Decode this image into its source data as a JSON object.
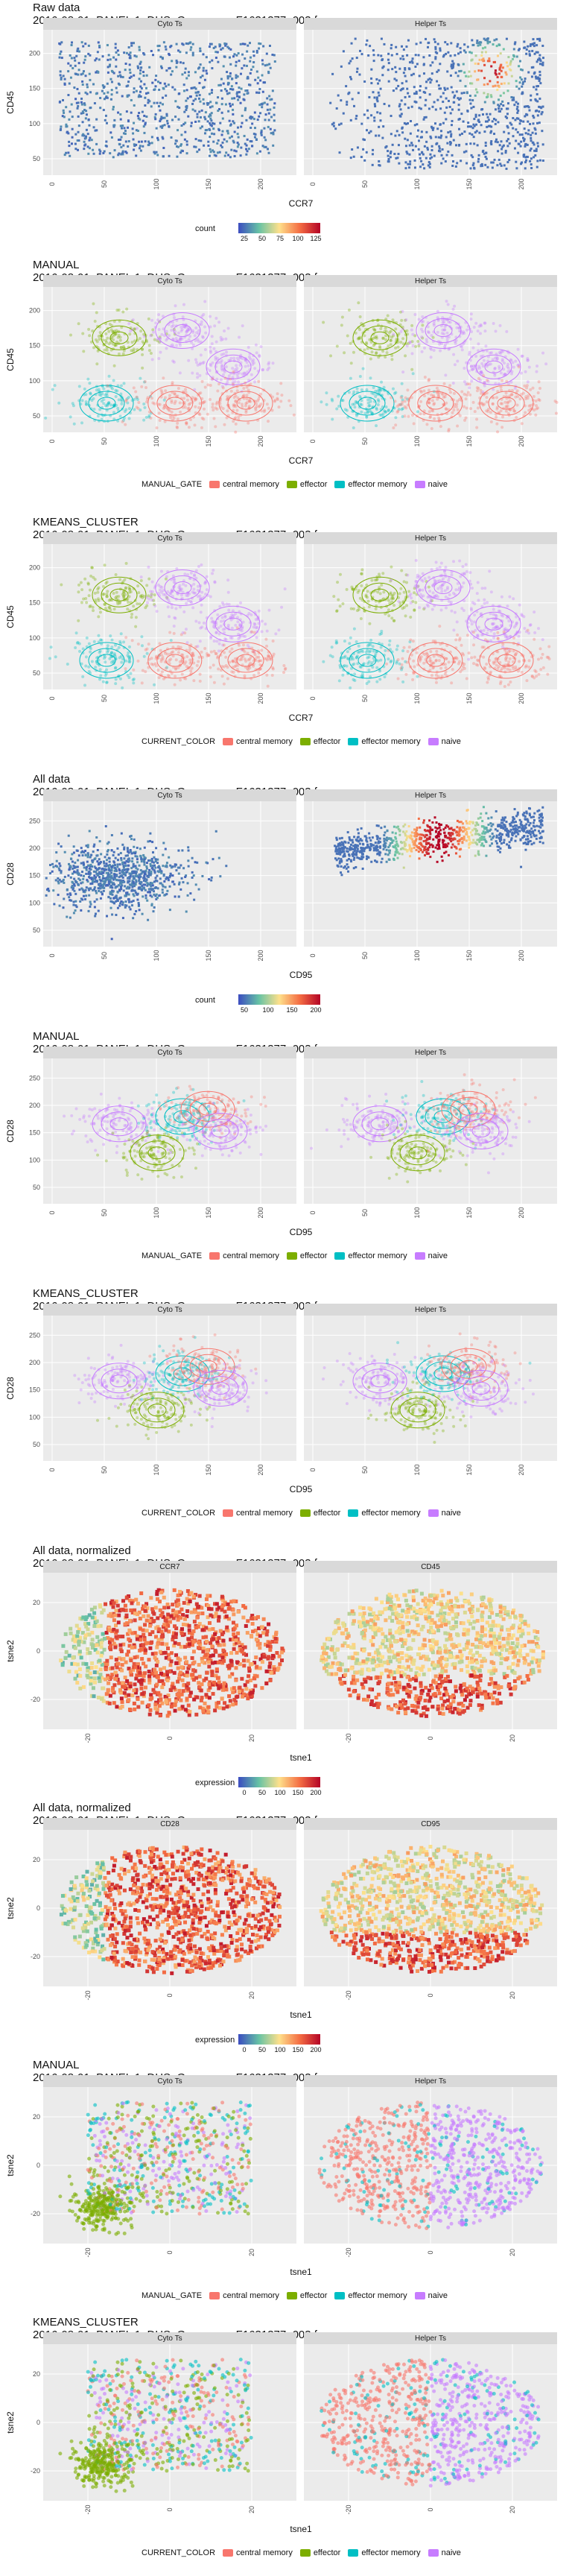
{
  "sections": [
    {
      "id": "raw",
      "title": "Raw data",
      "subtitle": "2016-08-01_PANEL 1_DHS_Group one_F1631377_003.fcs",
      "panels": [
        "Cyto Ts",
        "Helper Ts"
      ],
      "xlabel": "CCR7",
      "ylabel": "CD45",
      "legend_title": "count",
      "legend_ticks": [
        "25",
        "50",
        "75",
        "100",
        "125"
      ],
      "kind": "density"
    },
    {
      "id": "manual1",
      "title": "MANUAL",
      "subtitle": "2016-08-01_PANEL 1_DHS_Group one_F1631377_003.fcs",
      "panels": [
        "Cyto Ts",
        "Helper Ts"
      ],
      "xlabel": "CCR7",
      "ylabel": "CD45",
      "legend_title": "MANUAL_GATE",
      "kind": "cluster"
    },
    {
      "id": "kmeans1",
      "title": "KMEANS_CLUSTER",
      "subtitle": "2016-08-01_PANEL 1_DHS_Group one_F1631377_003.fcs",
      "panels": [
        "Cyto Ts",
        "Helper Ts"
      ],
      "xlabel": "CCR7",
      "ylabel": "CD45",
      "legend_title": "CURRENT_COLOR",
      "kind": "cluster"
    },
    {
      "id": "all",
      "title": "All data",
      "subtitle": "2016-08-01_PANEL 1_DHS_Group one_F1631377_003.fcs",
      "panels": [
        "Cyto Ts",
        "Helper Ts"
      ],
      "xlabel": "CD95",
      "ylabel": "CD28",
      "legend_title": "count",
      "legend_ticks": [
        "50",
        "100",
        "150",
        "200"
      ],
      "kind": "density"
    },
    {
      "id": "manual2",
      "title": "MANUAL",
      "subtitle": "2016-08-01_PANEL 1_DHS_Group one_F1631377_003.fcs",
      "panels": [
        "Cyto Ts",
        "Helper Ts"
      ],
      "xlabel": "CD95",
      "ylabel": "CD28",
      "legend_title": "MANUAL_GATE",
      "kind": "cluster"
    },
    {
      "id": "kmeans2",
      "title": "KMEANS_CLUSTER",
      "subtitle": "2016-08-01_PANEL 1_DHS_Group one_F1631377_003.fcs",
      "panels": [
        "Cyto Ts",
        "Helper Ts"
      ],
      "xlabel": "CD95",
      "ylabel": "CD28",
      "legend_title": "CURRENT_COLOR",
      "kind": "cluster"
    },
    {
      "id": "norm1",
      "title": "All data, normalized",
      "subtitle": "2016-08-01_PANEL 1_DHS_Group one_F1631377_003.fcs",
      "panels": [
        "CCR7",
        "CD45"
      ],
      "xlabel": "tsne1",
      "ylabel": "tsne2",
      "legend_title": "expression",
      "legend_ticks": [
        "0",
        "50",
        "100",
        "150",
        "200"
      ],
      "kind": "tsneheat"
    },
    {
      "id": "norm2",
      "title": "All data, normalized",
      "subtitle": "2016-08-01_PANEL 1_DHS_Group one_F1631377_003.fcs",
      "panels": [
        "CD28",
        "CD95"
      ],
      "xlabel": "tsne1",
      "ylabel": "tsne2",
      "legend_title": "expression",
      "legend_ticks": [
        "0",
        "50",
        "100",
        "150",
        "200"
      ],
      "kind": "tsneheat"
    },
    {
      "id": "manual3",
      "title": "MANUAL",
      "subtitle": "2016-08-01_PANEL 1_DHS_Group one_F1631377_003.fcs",
      "panels": [
        "Cyto Ts",
        "Helper Ts"
      ],
      "xlabel": "tsne1",
      "ylabel": "tsne2",
      "legend_title": "MANUAL_GATE",
      "kind": "tsnecluster"
    },
    {
      "id": "kmeans3",
      "title": "KMEANS_CLUSTER",
      "subtitle": "2016-08-01_PANEL 1_DHS_Group one_F1631377_003.fcs",
      "panels": [
        "Cyto Ts",
        "Helper Ts"
      ],
      "xlabel": "tsne1",
      "ylabel": "tsne2",
      "legend_title": "CURRENT_COLOR",
      "kind": "tsnecluster"
    }
  ],
  "cluster_legend": [
    {
      "label": "central memory",
      "color": "#F8766D"
    },
    {
      "label": "effector",
      "color": "#7CAE00"
    },
    {
      "label": "effector memory",
      "color": "#00BFC4"
    },
    {
      "label": "naive",
      "color": "#C77CFF"
    }
  ],
  "axes": {
    "ccr7_cd45": {
      "x_ticks": [
        "0",
        "50",
        "100",
        "150",
        "200"
      ],
      "y_ticks": [
        "50",
        "100",
        "150",
        "200"
      ]
    },
    "cd95_cd28": {
      "x_ticks": [
        "0",
        "50",
        "100",
        "150",
        "200"
      ],
      "y_ticks": [
        "50",
        "100",
        "150",
        "200",
        "250"
      ]
    },
    "tsne": {
      "x_ticks": [
        "-20",
        "0",
        "20"
      ],
      "y_ticks": [
        "-20",
        "0",
        "20"
      ]
    }
  },
  "colors": {
    "panel_bg": "#EBEBEB",
    "strip_bg": "#D9D9D9",
    "grid": "#FFFFFF",
    "density_low": "#3B4CC0",
    "density_high": "#B40426"
  },
  "chart_data": [
    {
      "type": "heatmap",
      "title": "Raw data",
      "facets": [
        "Cyto Ts",
        "Helper Ts"
      ],
      "xlabel": "CCR7",
      "ylabel": "CD45",
      "xlim": [
        0,
        220
      ],
      "ylim": [
        40,
        220
      ],
      "fill": "count",
      "fill_range": [
        0,
        125
      ]
    },
    {
      "type": "scatter",
      "title": "MANUAL",
      "facets": [
        "Cyto Ts",
        "Helper Ts"
      ],
      "xlabel": "CCR7",
      "ylabel": "CD45",
      "series": [
        {
          "name": "central memory"
        },
        {
          "name": "effector"
        },
        {
          "name": "effector memory"
        },
        {
          "name": "naive"
        }
      ]
    },
    {
      "type": "scatter",
      "title": "KMEANS_CLUSTER",
      "facets": [
        "Cyto Ts",
        "Helper Ts"
      ],
      "xlabel": "CCR7",
      "ylabel": "CD45",
      "series": [
        {
          "name": "central memory"
        },
        {
          "name": "effector"
        },
        {
          "name": "effector memory"
        },
        {
          "name": "naive"
        }
      ]
    },
    {
      "type": "heatmap",
      "title": "All data",
      "facets": [
        "Cyto Ts",
        "Helper Ts"
      ],
      "xlabel": "CD95",
      "ylabel": "CD28",
      "xlim": [
        0,
        220
      ],
      "ylim": [
        20,
        260
      ],
      "fill": "count",
      "fill_range": [
        0,
        200
      ]
    },
    {
      "type": "scatter",
      "title": "MANUAL",
      "facets": [
        "Cyto Ts",
        "Helper Ts"
      ],
      "xlabel": "CD95",
      "ylabel": "CD28",
      "series": [
        {
          "name": "central memory"
        },
        {
          "name": "effector"
        },
        {
          "name": "effector memory"
        },
        {
          "name": "naive"
        }
      ]
    },
    {
      "type": "scatter",
      "title": "KMEANS_CLUSTER",
      "facets": [
        "Cyto Ts",
        "Helper Ts"
      ],
      "xlabel": "CD95",
      "ylabel": "CD28",
      "series": [
        {
          "name": "central memory"
        },
        {
          "name": "effector"
        },
        {
          "name": "effector memory"
        },
        {
          "name": "naive"
        }
      ]
    },
    {
      "type": "heatmap",
      "title": "All data, normalized",
      "facets": [
        "CCR7",
        "CD45"
      ],
      "xlabel": "tsne1",
      "ylabel": "tsne2",
      "fill": "expression",
      "fill_range": [
        0,
        200
      ]
    },
    {
      "type": "heatmap",
      "title": "All data, normalized",
      "facets": [
        "CD28",
        "CD95"
      ],
      "xlabel": "tsne1",
      "ylabel": "tsne2",
      "fill": "expression",
      "fill_range": [
        0,
        200
      ]
    },
    {
      "type": "scatter",
      "title": "MANUAL",
      "facets": [
        "Cyto Ts",
        "Helper Ts"
      ],
      "xlabel": "tsne1",
      "ylabel": "tsne2",
      "series": [
        {
          "name": "central memory"
        },
        {
          "name": "effector"
        },
        {
          "name": "effector memory"
        },
        {
          "name": "naive"
        }
      ]
    },
    {
      "type": "scatter",
      "title": "KMEANS_CLUSTER",
      "facets": [
        "Cyto Ts",
        "Helper Ts"
      ],
      "xlabel": "tsne1",
      "ylabel": "tsne2",
      "series": [
        {
          "name": "central memory"
        },
        {
          "name": "effector"
        },
        {
          "name": "effector memory"
        },
        {
          "name": "naive"
        }
      ]
    }
  ]
}
